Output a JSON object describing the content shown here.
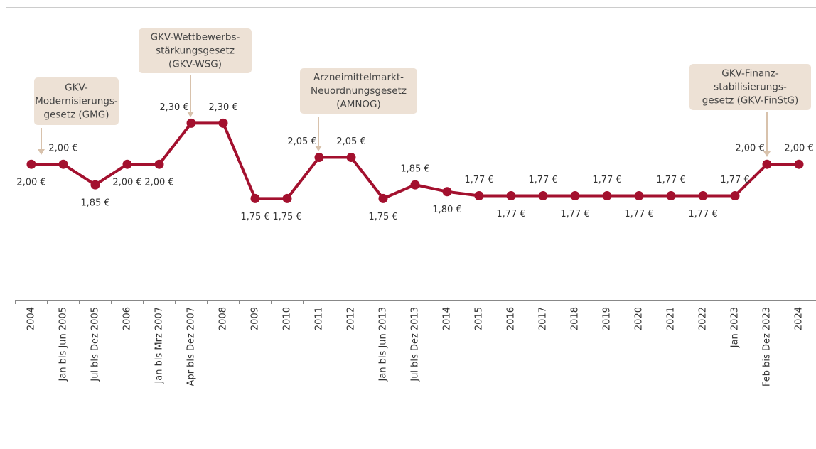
{
  "chart_data": {
    "type": "line",
    "categories": [
      "2004",
      "Jan bis Jun 2005",
      "Jul bis Dez 2005",
      "2006",
      "Jan bis Mrz 2007",
      "Apr bis Dez 2007",
      "2008",
      "2009",
      "2010",
      "2011",
      "2012",
      "Jan bis Jun 2013",
      "Jul bis Dez 2013",
      "2014",
      "2015",
      "2016",
      "2017",
      "2018",
      "2019",
      "2020",
      "2021",
      "2022",
      "Jan 2023",
      "Feb bis Dez 2023",
      "2024"
    ],
    "series": [
      {
        "color": "#a3102e",
        "values": [
          2.0,
          2.0,
          1.85,
          2.0,
          2.0,
          2.3,
          2.3,
          1.75,
          1.75,
          2.05,
          2.05,
          1.75,
          1.85,
          1.8,
          1.77,
          1.77,
          1.77,
          1.77,
          1.77,
          1.77,
          1.77,
          1.77,
          1.77,
          2.0,
          2.0
        ],
        "value_labels": [
          "2,00 €",
          "2,00 €",
          "1,85 €",
          "2,00 €",
          "2,00 €",
          "2,30 €",
          "2,30 €",
          "1,75 €",
          "1,75 €",
          "2,05 €",
          "2,05 €",
          "1,75 €",
          "1,85 €",
          "1,80 €",
          "1,77 €",
          "1,77 €",
          "1,77 €",
          "1,77 €",
          "1,77 €",
          "1,77 €",
          "1,77 €",
          "1,77 €",
          "1,77 €",
          "2,00 €",
          "2,00 €"
        ]
      }
    ],
    "ylim": [
      1.02,
      3.2
    ],
    "annotations": [
      {
        "lines": [
          "GKV-",
          "Modernisierungs-",
          "gesetz (GMG)"
        ]
      },
      {
        "lines": [
          "GKV-Wettbewerbs-",
          "stärkungsgesetz",
          "(GKV-WSG)"
        ]
      },
      {
        "lines": [
          "Arzneimittelmarkt-",
          "Neuordnungsgesetz",
          "(AMNOG)"
        ]
      },
      {
        "lines": [
          "GKV-Finanz-",
          "stabilisierungs-",
          "gesetz (GKV-FinStG)"
        ]
      }
    ]
  }
}
